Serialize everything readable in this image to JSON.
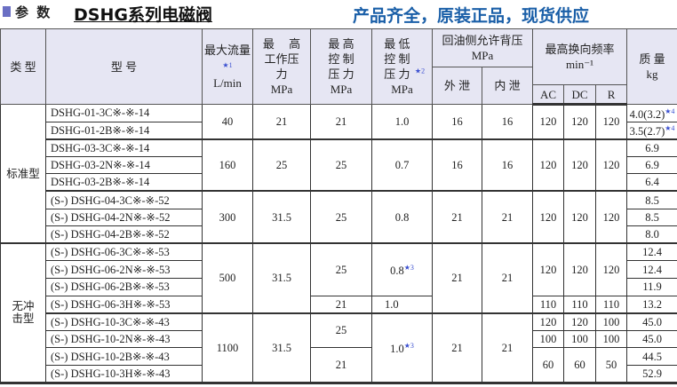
{
  "header": {
    "section": "参 数",
    "title": "DSHG系列电磁阀",
    "slogan": "产品齐全，原装正品，现货供应"
  },
  "colors": {
    "accent": "#6a6fc4",
    "slogan": "#1a5fa8",
    "star": "#3a4fd0"
  },
  "columns": {
    "type": "类 型",
    "model": "型 号",
    "flow": "最大流量",
    "flow_note": "★1",
    "flow_unit": "L/min",
    "pressure": "最　 高 工作压力",
    "pressure_unit": "MPa",
    "control": "最 高 控 制 压 力",
    "control_unit": "MPa",
    "min": "最 低 控 制 压 力",
    "min_note": "★2",
    "min_unit": "MPa",
    "back": "回油侧允许背压",
    "back_unit": "MPa",
    "ext": "外 泄",
    "int": "内 泄",
    "freq": "最高换向频率",
    "freq_unit": "min⁻¹",
    "ac": "AC",
    "dc": "DC",
    "r": "R",
    "mass": "质 量",
    "mass_unit": "kg"
  },
  "types": {
    "standard": "标准型",
    "shockless": "无冲 击型"
  },
  "groups": [
    {
      "models": [
        "DSHG-01-3C※-※-14",
        "DSHG-01-2B※-※-14"
      ],
      "flow": "40",
      "pressure": "21",
      "control": "21",
      "min": "1.0",
      "ext": "16",
      "int": "16",
      "ac": "120",
      "dc": "120",
      "r": "120",
      "masses": [
        "4.0(3.2)",
        "3.5(2.7)"
      ],
      "mass_note": "★4"
    },
    {
      "models": [
        "DSHG-03-3C※-※-14",
        "DSHG-03-2N※-※-14",
        "DSHG-03-2B※-※-14"
      ],
      "flow": "160",
      "pressure": "25",
      "control": "25",
      "min": "0.7",
      "ext": "16",
      "int": "16",
      "ac": "120",
      "dc": "120",
      "r": "120",
      "masses": [
        "6.9",
        "6.9",
        "6.4"
      ]
    },
    {
      "models": [
        "(S-) DSHG-04-3C※-※-52",
        "(S-) DSHG-04-2N※-※-52",
        "(S-) DSHG-04-2B※-※-52"
      ],
      "flow": "300",
      "pressure": "31.5",
      "control": "25",
      "min": "0.8",
      "ext": "21",
      "int": "21",
      "ac": "120",
      "dc": "120",
      "r": "120",
      "masses": [
        "8.5",
        "8.5",
        "8.0"
      ]
    },
    {
      "models": [
        "(S-) DSHG-06-3C※-※-53",
        "(S-) DSHG-06-2N※-※-53",
        "(S-) DSHG-06-2B※-※-53",
        "(S-) DSHG-06-3H※-※-53"
      ],
      "flow": "500",
      "pressure": "31.5",
      "control": "25",
      "control2": "21",
      "min": "0.8",
      "min_note": "★3",
      "min2": "1.0",
      "ext": "21",
      "int": "21",
      "ac": "120",
      "dc": "120",
      "r": "120",
      "ac2": "110",
      "dc2": "110",
      "r2": "110",
      "masses": [
        "12.4",
        "12.4",
        "11.9",
        "13.2"
      ]
    },
    {
      "models": [
        "(S-) DSHG-10-3C※-※-43",
        "(S-) DSHG-10-2N※-※-43",
        "(S-) DSHG-10-2B※-※-43",
        "(S-) DSHG-10-3H※-※-43"
      ],
      "flow": "1100",
      "pressure": "31.5",
      "control": "25",
      "control2": "21",
      "min": "1.0",
      "min_note": "★3",
      "ext": "21",
      "int": "21",
      "freq_rows": [
        [
          "120",
          "120",
          "100"
        ],
        [
          "100",
          "100",
          "100"
        ],
        [
          "60",
          "60",
          "50"
        ]
      ],
      "masses": [
        "45.0",
        "45.0",
        "44.5",
        "52.9"
      ]
    }
  ]
}
